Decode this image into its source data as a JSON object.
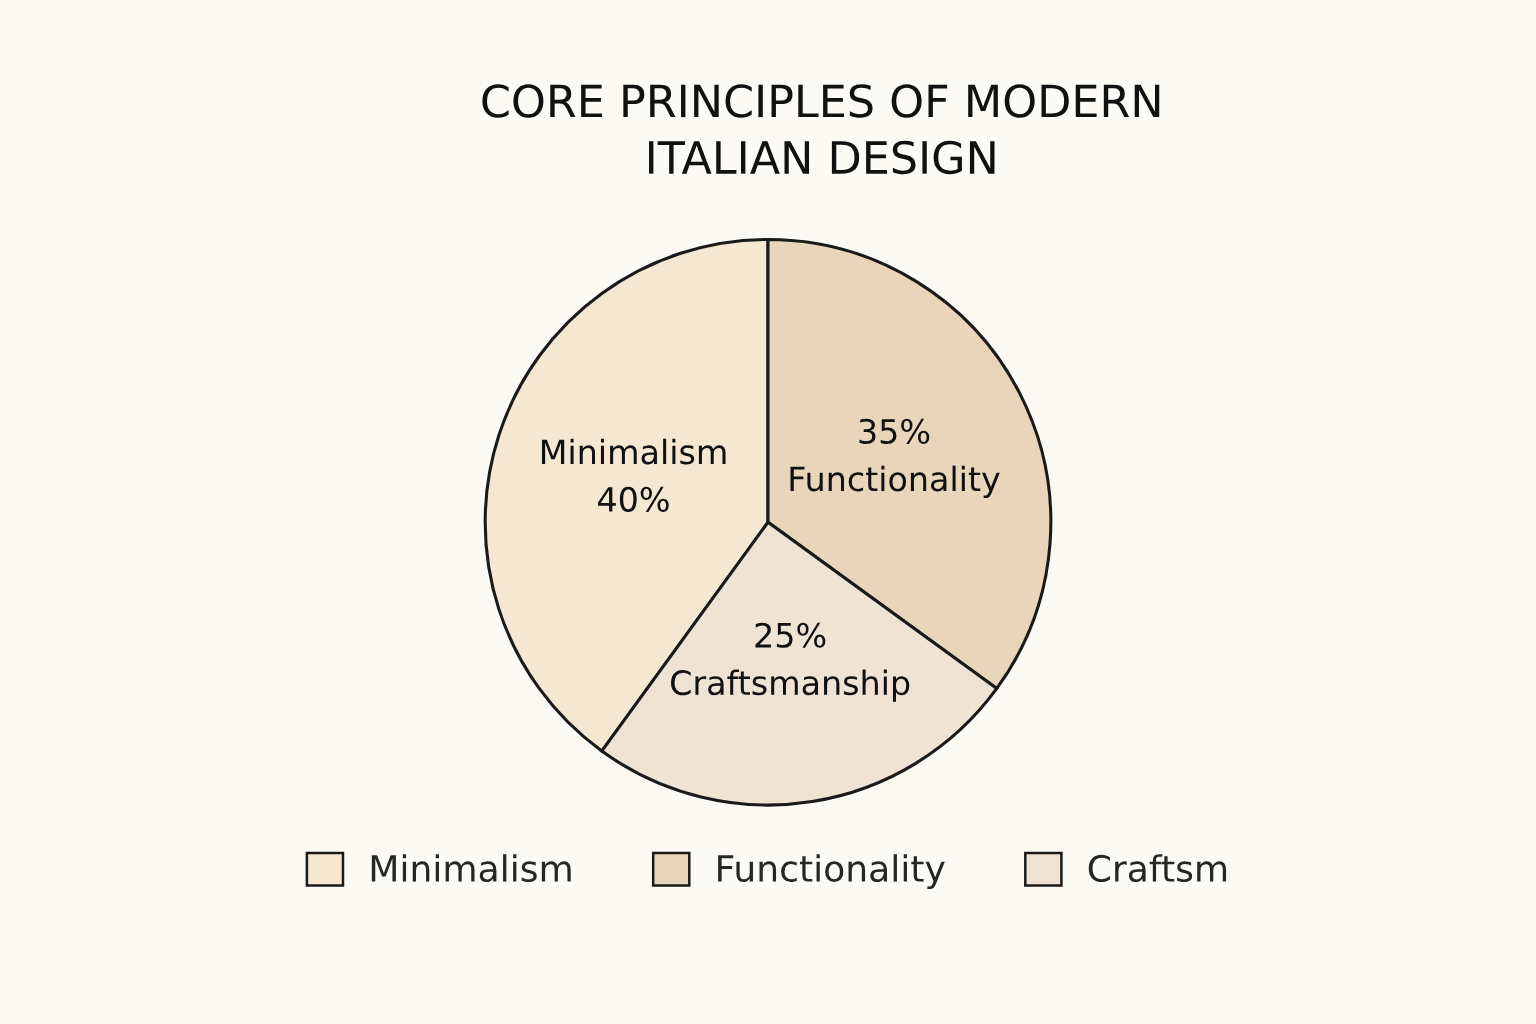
{
  "chart_data": {
    "type": "pie",
    "title": "CORE PRINCIPLES OF MODERN\nITALIAN DESIGN",
    "categories": [
      "Minimalism",
      "Functionality",
      "Craftsm"
    ],
    "values": [
      40,
      35,
      25
    ],
    "colors": [
      "#f5e7d2",
      "#e9d6ba",
      "#f0e3d4"
    ],
    "value_labels": [
      "Minimalism\n40%",
      "35%\nFunctionality",
      "25%\nCraftsmanship"
    ],
    "legend": "bottom"
  }
}
